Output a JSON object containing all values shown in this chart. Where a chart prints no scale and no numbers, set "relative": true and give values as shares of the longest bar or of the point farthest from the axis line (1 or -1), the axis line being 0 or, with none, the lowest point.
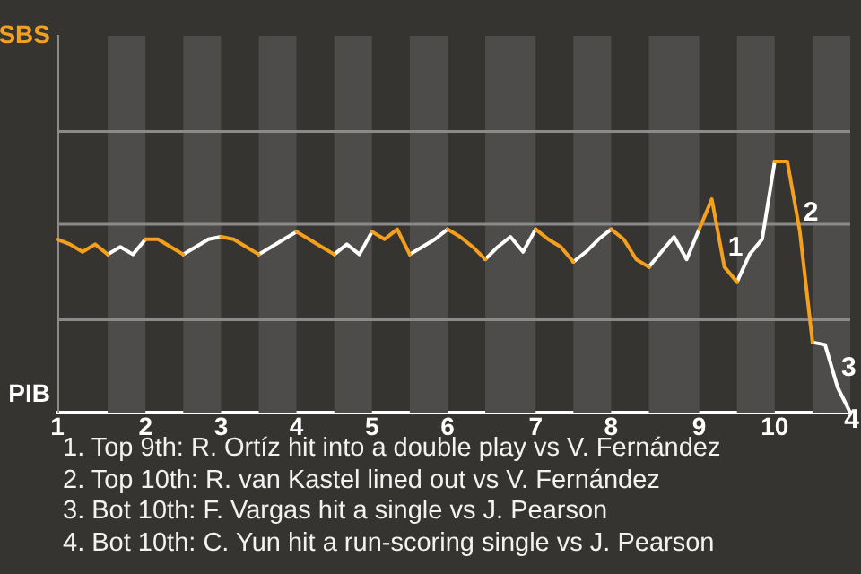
{
  "chart_data": {
    "type": "line",
    "categories": [
      "1",
      null,
      null,
      null,
      null,
      null,
      null,
      "2",
      null,
      null,
      null,
      null,
      null,
      "3",
      null,
      null,
      null,
      null,
      null,
      "4",
      null,
      null,
      null,
      null,
      null,
      "5",
      null,
      null,
      null,
      null,
      null,
      "6",
      null,
      null,
      null,
      null,
      null,
      null,
      "7",
      null,
      null,
      null,
      null,
      null,
      "8",
      null,
      null,
      null,
      null,
      null,
      null,
      "9",
      null,
      null,
      null,
      null,
      null,
      "10",
      null,
      null,
      null,
      null,
      null,
      null
    ],
    "relative": true,
    "series": [
      {
        "name": "SBS",
        "color": "#f5a01c",
        "values": [
          0.69,
          0.67,
          0.64,
          0.67,
          0.63,
          null,
          null,
          0.69,
          0.69,
          0.66,
          0.63,
          null,
          null,
          0.7,
          0.69,
          0.66,
          0.63,
          null,
          null,
          0.72,
          0.69,
          0.66,
          0.63,
          null,
          null,
          0.72,
          0.69,
          0.73,
          0.63,
          null,
          null,
          0.73,
          0.7,
          0.66,
          0.61,
          null,
          null,
          null,
          0.73,
          0.69,
          0.66,
          0.6,
          null,
          null,
          0.73,
          0.69,
          0.61,
          0.58,
          null,
          null,
          null,
          0.73,
          0.85,
          0.58,
          0.52,
          null,
          null,
          1,
          1,
          0.72,
          0.28,
          null,
          null,
          null
        ]
      },
      {
        "name": "PIB",
        "color": "#ffffff",
        "values": [
          null,
          null,
          null,
          null,
          0.63,
          0.66,
          0.63,
          0.69,
          null,
          null,
          0.63,
          0.66,
          0.69,
          0.7,
          null,
          null,
          0.63,
          0.66,
          0.69,
          0.72,
          null,
          null,
          0.63,
          0.67,
          0.63,
          0.72,
          null,
          null,
          0.63,
          0.66,
          0.69,
          0.73,
          null,
          null,
          0.61,
          0.66,
          0.7,
          0.64,
          0.73,
          null,
          null,
          0.6,
          0.64,
          0.69,
          0.73,
          null,
          null,
          0.58,
          0.64,
          0.7,
          0.61,
          0.73,
          null,
          null,
          0.52,
          0.63,
          0.69,
          1,
          null,
          null,
          0.28,
          0.27,
          0.1,
          0
        ]
      }
    ],
    "ref_lines": [
      {
        "axis": "y",
        "value": 0.37,
        "color": "#8a8a8a"
      },
      {
        "axis": "y",
        "value": 0.75,
        "color": "#8a8a8a"
      },
      {
        "axis": "y",
        "value": 1.12,
        "color": "#8a8a8a"
      }
    ],
    "marker": "none",
    "line_style": "solid",
    "annotations": [
      {
        "text": "1",
        "y": 0.58
      },
      {
        "text": "2",
        "y": 0.72
      },
      {
        "text": "3",
        "y": 0.1
      },
      {
        "text": "4",
        "y": 0
      },
      "1. Top 9th: R. Ortíz hit into a double play vs V. Fernández",
      "2. Top 10th: R. van Kastel lined out vs V. Fernández",
      "3. Bot 10th: F. Vargas hit a single vs J. Pearson",
      "4. Bot 10th: C. Yun hit a run-scoring single vs J. Pearson"
    ]
  }
}
